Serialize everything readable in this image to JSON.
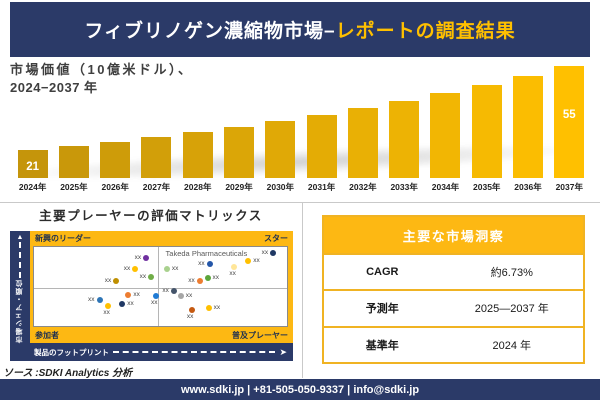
{
  "colors": {
    "navy": "#2B3A68",
    "gold": "#FDB813",
    "gold_border": "#F0B323",
    "accent_text": "#FFC000"
  },
  "header": {
    "title_white": "フィブリノゲン濃縮物市場–",
    "title_gold": "レポートの調査結果"
  },
  "chart": {
    "heading_line1": "市場価値（10億米ドル）、",
    "heading_line2": "2024−2037 年"
  },
  "chart_data": {
    "type": "bar",
    "title": "市場価値（10億米ドル）、2024−2037 年",
    "ylabel": "市場価値（10億米ドル）",
    "xlabel": "",
    "ylim": [
      0,
      60
    ],
    "grid": false,
    "categories": [
      "2024年",
      "2025年",
      "2026年",
      "2027年",
      "2028年",
      "2029年",
      "2030年",
      "2031年",
      "2032年",
      "2033年",
      "2034年",
      "2035年",
      "2036年",
      "2037年"
    ],
    "values": [
      21,
      22.6,
      24.4,
      26.2,
      28.2,
      30.4,
      32.7,
      35.2,
      37.9,
      40.9,
      44.0,
      47.4,
      51.0,
      55
    ],
    "shown_value_labels": {
      "2024年": "21",
      "2037年": "55"
    },
    "bar_colors": [
      "#C5950B",
      "#C9980A",
      "#CE9C09",
      "#D29F09",
      "#D7A208",
      "#DBA607",
      "#E0A906",
      "#E4AC05",
      "#E9B005",
      "#EDB304",
      "#F2B603",
      "#F6BA02",
      "#FBBD01",
      "#FFC000"
    ]
  },
  "matrix": {
    "title": "主要プレーヤーの評価マトリックス",
    "quadrant_top_left": "新興のリーダー",
    "quadrant_top_right": "スター",
    "quadrant_bottom_left": "参加者",
    "quadrant_bottom_right": "普及プレーヤー",
    "y_axis_label": "市場シェア・順位",
    "x_axis_label": "製品のフットプリント",
    "highlight_company": "Takeda Pharmaceuticals",
    "point_label": "xx",
    "points": [
      {
        "x": 44.3,
        "y": 13.6,
        "color": "#7030A0",
        "side": "l"
      },
      {
        "x": 40.0,
        "y": 28.4,
        "color": "#FFC000",
        "side": "l"
      },
      {
        "x": 46.3,
        "y": 38.3,
        "color": "#70AD47",
        "side": "l"
      },
      {
        "x": 32.5,
        "y": 43.2,
        "color": "#BF8F00",
        "side": "l"
      },
      {
        "x": 37.3,
        "y": 60.5,
        "color": "#ED7D31",
        "side": "r"
      },
      {
        "x": 25.9,
        "y": 66.7,
        "color": "#2E75B6",
        "side": "l"
      },
      {
        "x": 34.9,
        "y": 71.6,
        "color": "#203864",
        "side": "r"
      },
      {
        "x": 29.4,
        "y": 74.1,
        "color": "#FFC000",
        "side": "b"
      },
      {
        "x": 48.2,
        "y": 61.7,
        "color": "#1F7AD4",
        "side": "b"
      },
      {
        "x": 94.5,
        "y": 7.4,
        "color": "#1F3864",
        "side": "l"
      },
      {
        "x": 69.4,
        "y": 21.0,
        "color": "#2456A8",
        "side": "l"
      },
      {
        "x": 52.5,
        "y": 28.4,
        "color": "#A9D18E",
        "side": "r"
      },
      {
        "x": 79.2,
        "y": 24.7,
        "color": "#FFE699",
        "side": "b"
      },
      {
        "x": 84.7,
        "y": 17.3,
        "color": "#FFC000",
        "side": "r"
      },
      {
        "x": 65.5,
        "y": 43.2,
        "color": "#ED7D31",
        "side": "l"
      },
      {
        "x": 68.6,
        "y": 39.5,
        "color": "#5BA53A",
        "side": "r"
      },
      {
        "x": 55.3,
        "y": 55.6,
        "color": "#44546A",
        "side": "l"
      },
      {
        "x": 58.0,
        "y": 61.7,
        "color": "#A6A6A6",
        "side": "r"
      },
      {
        "x": 62.4,
        "y": 80.2,
        "color": "#C55A11",
        "side": "b"
      },
      {
        "x": 69.0,
        "y": 77.8,
        "color": "#FFC000",
        "side": "r"
      }
    ]
  },
  "insights": {
    "title": "主要な市場洞察",
    "rows": [
      {
        "label": "CAGR",
        "value": "約6.73%"
      },
      {
        "label": "予測年",
        "value": "2025—2037 年"
      },
      {
        "label": "基準年",
        "value": "2024 年"
      }
    ]
  },
  "source_note": "ソース :SDKI Analytics 分析",
  "footer": {
    "text": "www.sdki.jp | +81-505-050-9337 | info@sdki.jp"
  }
}
